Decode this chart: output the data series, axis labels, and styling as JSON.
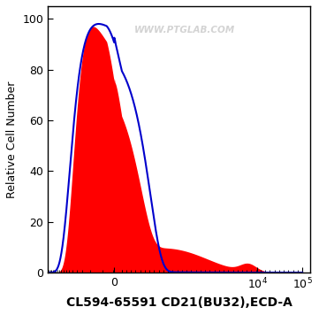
{
  "title": "",
  "xlabel": "CL594-65591 CD21(BU32),ECD-A",
  "ylabel": "Relative Cell Number",
  "watermark": "WWW.PTGLAB.COM",
  "ylim": [
    0,
    105
  ],
  "yticks": [
    0,
    20,
    40,
    60,
    80,
    100
  ],
  "red_fill_color": "#FF0000",
  "blue_line_color": "#0000CC",
  "background_color": "#FFFFFF",
  "xlabel_fontsize": 10,
  "ylabel_fontsize": 9,
  "tick_fontsize": 9
}
